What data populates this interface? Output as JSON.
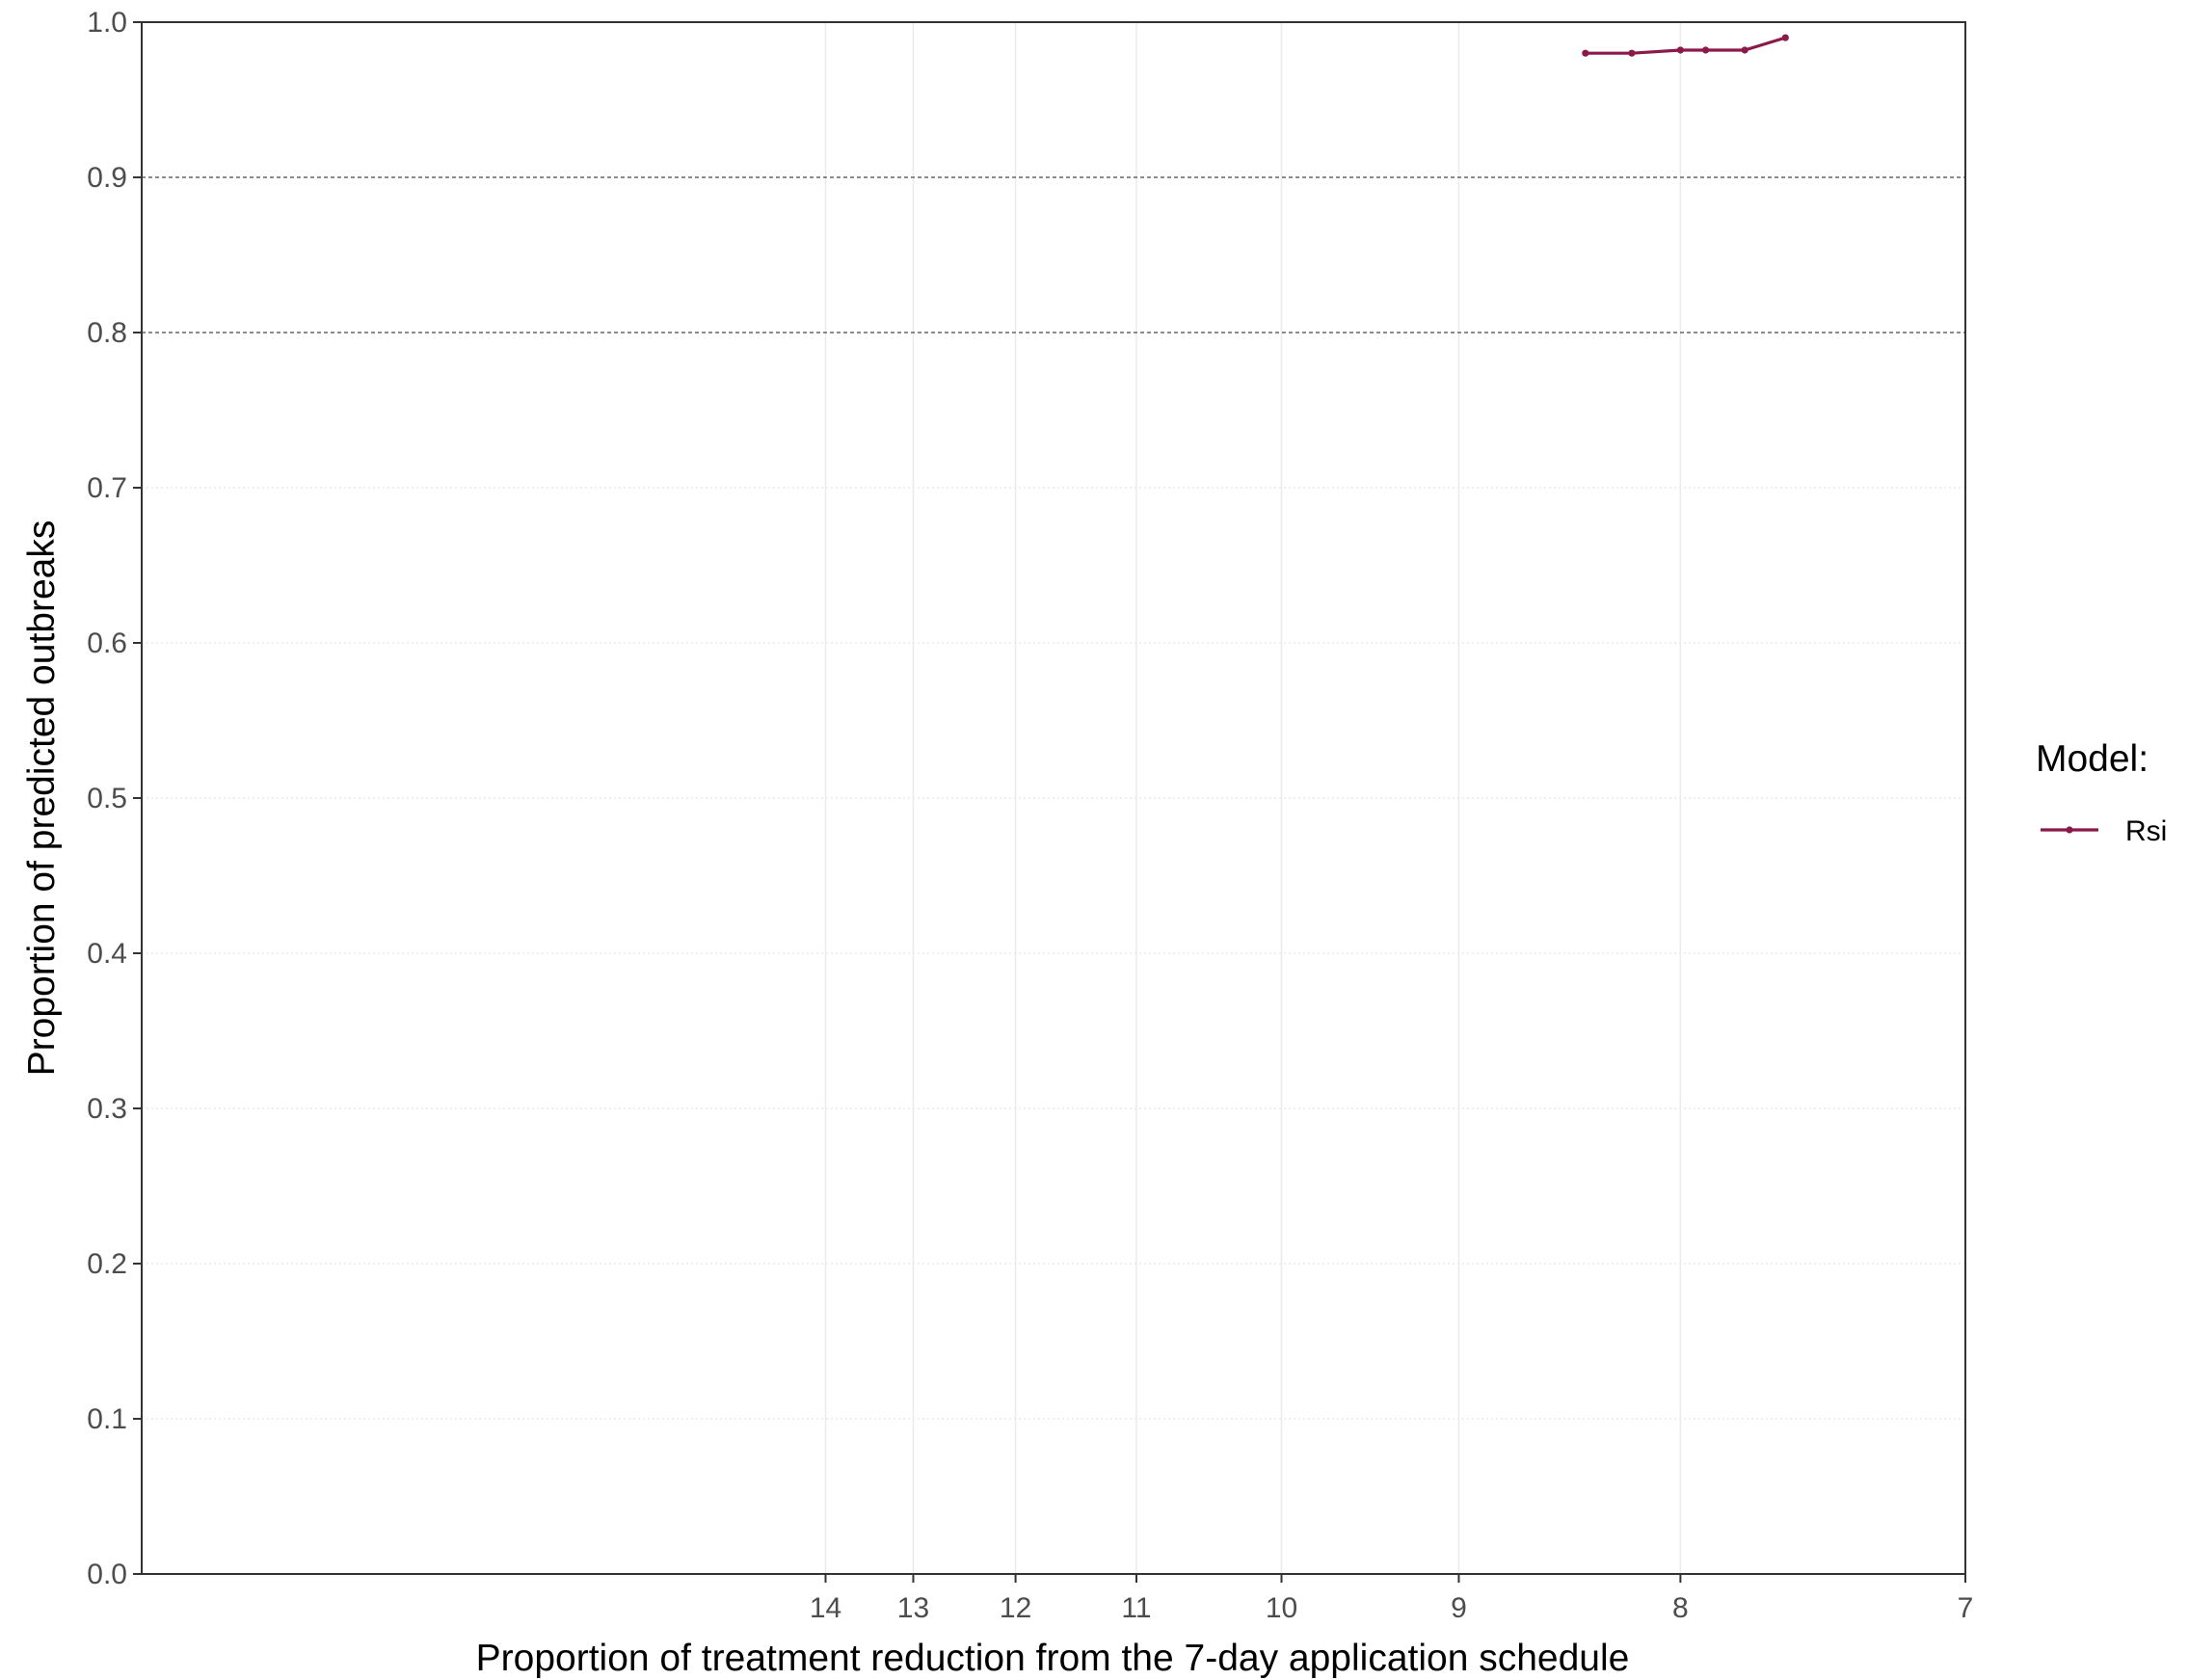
{
  "chart_data": {
    "type": "line",
    "title": "",
    "xlabel": "Proportion of treatment reduction from the 7-day application schedule",
    "ylabel": "Proportion of predicted outbreaks",
    "x_scale": "reciprocal",
    "x_ticks": [
      14,
      13,
      12,
      11,
      10,
      9,
      8,
      7
    ],
    "x_tick_labels": [
      "14",
      "13",
      "12",
      "11",
      "10",
      "9",
      "8",
      "7"
    ],
    "ylim": [
      0,
      1.0
    ],
    "y_ticks": [
      0.0,
      0.1,
      0.2,
      0.3,
      0.4,
      0.5,
      0.6,
      0.7,
      0.8,
      0.9,
      1.0
    ],
    "y_tick_labels": [
      "0.0",
      "0.1",
      "0.2",
      "0.3",
      "0.4",
      "0.5",
      "0.6",
      "0.7",
      "0.8",
      "0.9",
      "1.0"
    ],
    "reference_lines_y": [
      0.8,
      0.9
    ],
    "grid": true,
    "legend_title": "Model:",
    "legend_position": "right",
    "series": [
      {
        "name": "Rsi",
        "color": "#8B1A4A",
        "x": [
          8.4,
          8.2,
          8.0,
          7.9,
          7.75,
          7.6
        ],
        "y": [
          0.98,
          0.98,
          0.982,
          0.982,
          0.982,
          0.99
        ]
      }
    ]
  }
}
